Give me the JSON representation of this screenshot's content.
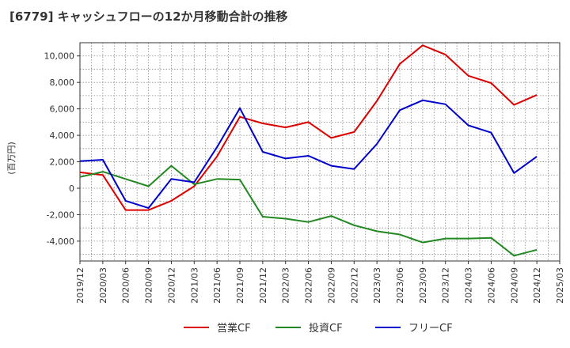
{
  "chart_data": {
    "type": "line",
    "title": "[6779]  キャッシュフローの12か月移動合計の推移",
    "ylabel": "(百万円)",
    "xlabel": "",
    "ylim": [
      -5500,
      11000
    ],
    "yticks": [
      -4000,
      -2000,
      0,
      2000,
      4000,
      6000,
      8000,
      10000
    ],
    "ytick_labels": [
      "-4,000",
      "-2,000",
      "0",
      "2,000",
      "4,000",
      "6,000",
      "8,000",
      "10,000"
    ],
    "x_ticks": [
      "2019/12",
      "2020/03",
      "2020/06",
      "2020/09",
      "2020/12",
      "2021/03",
      "2021/06",
      "2021/09",
      "2021/12",
      "2022/03",
      "2022/06",
      "2022/09",
      "2022/12",
      "2023/03",
      "2023/06",
      "2023/09",
      "2023/12",
      "2024/03",
      "2024/06",
      "2024/09",
      "2024/12",
      "2025/03"
    ],
    "grid": true,
    "legend_position": "bottom",
    "series": [
      {
        "name": "営業CF",
        "color": "#dd0000",
        "values": [
          1200,
          1000,
          -1650,
          -1650,
          -950,
          150,
          2400,
          5400,
          4900,
          4600,
          5000,
          3800,
          4250,
          6600,
          9400,
          10800,
          10100,
          8500,
          7950,
          6300,
          7050
        ]
      },
      {
        "name": "投資CF",
        "color": "#228822",
        "values": [
          850,
          1250,
          700,
          150,
          1700,
          300,
          700,
          650,
          -2150,
          -2300,
          -2550,
          -2100,
          -2800,
          -3250,
          -3500,
          -4100,
          -3800,
          -3800,
          -3750,
          -5100,
          -4650
        ]
      },
      {
        "name": "フリーCF",
        "color": "#0000cc",
        "values": [
          2050,
          2150,
          -950,
          -1500,
          700,
          450,
          3100,
          6050,
          2750,
          2250,
          2450,
          1700,
          1450,
          3350,
          5900,
          6650,
          6350,
          4750,
          4200,
          1150,
          2400
        ]
      }
    ]
  }
}
